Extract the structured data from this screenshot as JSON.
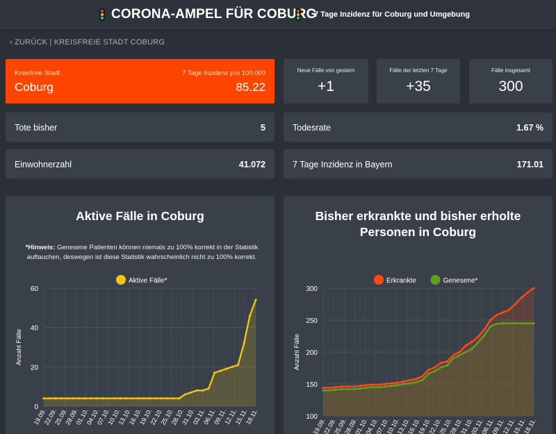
{
  "header": {
    "title": "CORONA-AMPEL FÜR COBURG",
    "subtitle": "7 Tage Inzidenz für Coburg und Umgebung"
  },
  "nav": {
    "back_label": "‹ ZURÜCK | KREISFREIE STADT COBURG"
  },
  "colors": {
    "accent_orange": "#fb4500",
    "active_line": "#f1c40f",
    "sick_line": "#ff4a0f",
    "recovered_line": "#5fa021",
    "traffic_red": "#e74c3c",
    "traffic_yellow": "#f1c40f",
    "traffic_green": "#2ecc71"
  },
  "hero": {
    "region_label": "Kreisfreie Stadt",
    "city": "Coburg",
    "incidence_label": "7 Tage Inzidenz pro 100.000",
    "incidence_value": "85.22"
  },
  "stats": [
    {
      "label": "Neue Fälle von gestern",
      "value": "+1"
    },
    {
      "label": "Fälle der letzten 7 Tage",
      "value": "+35"
    },
    {
      "label": "Fälle insgesamt",
      "value": "300"
    }
  ],
  "rows": {
    "deaths": {
      "label": "Tote bisher",
      "value": "5"
    },
    "death_rate": {
      "label": "Todesrate",
      "value": "1.67 %"
    },
    "population": {
      "label": "Einwohnerzahl",
      "value": "41.072"
    },
    "bavaria": {
      "label": "7 Tage Inzidenz in Bayern",
      "value": "171.01"
    }
  },
  "panel_active": {
    "title": "Aktive Fälle in Coburg",
    "note_bold": "*Hinweis:",
    "note_text": " Genesene Patienten können niemals zu 100% korrekt in der Statistik auftauchen, deswegen ist diese Statistik wahrscheinlich nicht zu 100% korrekt."
  },
  "panel_cumulative": {
    "title_line1": "Bisher erkrankte und bisher erholte",
    "title_line2": "Personen in Coburg"
  },
  "chart_data": [
    {
      "type": "area",
      "ylabel": "Anzahl Fälle",
      "ylim": [
        0,
        60
      ],
      "yticks": [
        0,
        20,
        40,
        60
      ],
      "xtick_labels": [
        "19.09.",
        "22.09.",
        "25.09.",
        "28.09.",
        "01.10.",
        "04.10.",
        "07.10.",
        "10.10.",
        "13.10.",
        "16.10.",
        "19.10.",
        "22.10.",
        "25.10.",
        "28.10.",
        "31.10.",
        "03.11.",
        "06.11.",
        "09.11.",
        "12.11.",
        "15.11.",
        "18.11."
      ],
      "legend_position": "top",
      "series": [
        {
          "name": "Aktive Fälle*",
          "color": "#f1c40f",
          "values": [
            4,
            4,
            4,
            4,
            4,
            4,
            4,
            4,
            4,
            4,
            4,
            4,
            4,
            4,
            4,
            4,
            4,
            4,
            4,
            4,
            4,
            4,
            4,
            4,
            6,
            7,
            8,
            8,
            9,
            17,
            18,
            19,
            20,
            21,
            32,
            46,
            54
          ]
        }
      ]
    },
    {
      "type": "area",
      "ylabel": "Anzahl Fälle",
      "ylim": [
        100,
        300
      ],
      "yticks": [
        100,
        150,
        200,
        250,
        300
      ],
      "xtick_labels": [
        "19.09.",
        "22.09.",
        "25.09.",
        "28.09.",
        "01.10.",
        "04.10.",
        "07.10.",
        "10.10.",
        "13.10.",
        "16.10.",
        "19.10.",
        "22.10.",
        "25.10.",
        "28.10.",
        "31.10.",
        "03.11.",
        "06.11.",
        "09.11.",
        "12.11.",
        "15.11.",
        "18.11."
      ],
      "legend_position": "top",
      "series": [
        {
          "name": "Erkrankte",
          "color": "#ff4a0f",
          "values": [
            144,
            144,
            145,
            146,
            146,
            146,
            147,
            148,
            149,
            149,
            150,
            151,
            152,
            154,
            156,
            158,
            162,
            172,
            176,
            183,
            185,
            195,
            200,
            210,
            216,
            224,
            235,
            250,
            258,
            262,
            266,
            275,
            285,
            293,
            300
          ]
        },
        {
          "name": "Genesene*",
          "color": "#5fa021",
          "values": [
            140,
            140,
            141,
            142,
            142,
            142,
            143,
            144,
            145,
            145,
            146,
            147,
            148,
            150,
            151,
            153,
            156,
            166,
            170,
            176,
            179,
            190,
            195,
            200,
            205,
            215,
            226,
            240,
            244,
            245,
            245,
            245,
            245,
            245,
            245
          ]
        }
      ]
    }
  ]
}
